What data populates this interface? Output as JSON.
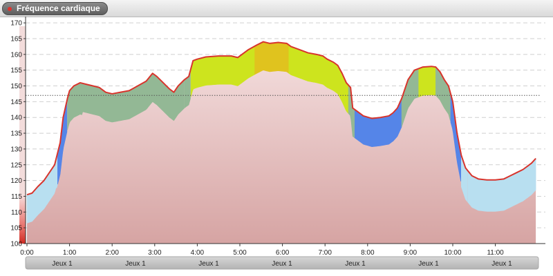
{
  "title": "Fréquence cardiaque",
  "colors": {
    "line": "#d8342c",
    "mean_line": "#555555",
    "baseline_fill": "#eac9c8",
    "zone_light_blue": "#b8dff0",
    "zone_blue": "#5585e8",
    "zone_green": "#93b895",
    "zone_yellow_green": "#cde41e",
    "zone_gold": "#e0c31e",
    "bar_red_top": "#f4d0ce",
    "bar_red_bottom": "#d7312a"
  },
  "chart_data": {
    "type": "area",
    "title": "Fréquence cardiaque",
    "xlabel": "",
    "ylabel": "",
    "ylim": [
      100,
      172
    ],
    "y_ticks": [
      "100",
      "105",
      "110",
      "115",
      "120",
      "125",
      "130",
      "135",
      "140",
      "145",
      "150",
      "155",
      "160",
      "165",
      "170"
    ],
    "x_ticks": [
      "0:00",
      "1:00",
      "2:00",
      "3:00",
      "4:00",
      "5:00",
      "6:00",
      "7:00",
      "8:00",
      "9:00",
      "10:00",
      "11:00"
    ],
    "day_labels": [
      "Jeux 1",
      "Jeux 1",
      "Jeux 1",
      "Jeux 1",
      "Jeux 1",
      "Jeux 1",
      "Jeux 1"
    ],
    "grid": true,
    "reference_line": 147,
    "series": [
      {
        "values": [
          [
            0,
            115.5
          ],
          [
            0.12,
            116
          ],
          [
            0.25,
            118
          ],
          [
            0.4,
            120
          ],
          [
            0.55,
            123
          ],
          [
            0.65,
            125
          ],
          [
            0.78,
            132
          ],
          [
            0.85,
            140
          ],
          [
            0.95,
            146
          ],
          [
            1.0,
            148.5
          ],
          [
            1.1,
            150
          ],
          [
            1.25,
            151
          ],
          [
            1.4,
            150.5
          ],
          [
            1.55,
            150
          ],
          [
            1.7,
            149.5
          ],
          [
            1.85,
            148
          ],
          [
            2.0,
            147.5
          ],
          [
            2.2,
            148
          ],
          [
            2.4,
            148.5
          ],
          [
            2.6,
            150
          ],
          [
            2.8,
            151.5
          ],
          [
            2.95,
            154
          ],
          [
            3.05,
            153
          ],
          [
            3.2,
            151
          ],
          [
            3.35,
            149
          ],
          [
            3.45,
            148
          ],
          [
            3.55,
            150
          ],
          [
            3.7,
            152
          ],
          [
            3.8,
            153
          ],
          [
            3.9,
            158
          ],
          [
            4.0,
            158.5
          ],
          [
            4.2,
            159.2
          ],
          [
            4.5,
            159.5
          ],
          [
            4.8,
            159.5
          ],
          [
            4.95,
            159
          ],
          [
            5.05,
            160
          ],
          [
            5.2,
            161.5
          ],
          [
            5.4,
            163
          ],
          [
            5.55,
            164
          ],
          [
            5.7,
            163.5
          ],
          [
            5.9,
            163.8
          ],
          [
            6.1,
            163.5
          ],
          [
            6.2,
            162.5
          ],
          [
            6.4,
            161.5
          ],
          [
            6.6,
            160.5
          ],
          [
            6.8,
            160
          ],
          [
            6.95,
            159.5
          ],
          [
            7.05,
            158.5
          ],
          [
            7.2,
            157.5
          ],
          [
            7.3,
            156.5
          ],
          [
            7.4,
            154
          ],
          [
            7.5,
            151
          ],
          [
            7.6,
            149.5
          ],
          [
            7.65,
            143
          ],
          [
            7.75,
            142
          ],
          [
            7.9,
            140.5
          ],
          [
            8.1,
            139.7
          ],
          [
            8.3,
            140
          ],
          [
            8.5,
            140.5
          ],
          [
            8.6,
            141.5
          ],
          [
            8.7,
            143
          ],
          [
            8.8,
            146
          ],
          [
            8.95,
            152
          ],
          [
            9.1,
            155
          ],
          [
            9.3,
            156
          ],
          [
            9.5,
            156.2
          ],
          [
            9.6,
            156
          ],
          [
            9.7,
            154.5
          ],
          [
            9.8,
            152
          ],
          [
            9.9,
            150
          ],
          [
            10.0,
            145
          ],
          [
            10.1,
            135
          ],
          [
            10.2,
            128
          ],
          [
            10.3,
            124
          ],
          [
            10.45,
            121.5
          ],
          [
            10.6,
            120.5
          ],
          [
            10.8,
            120.2
          ],
          [
            11.0,
            120.2
          ],
          [
            11.2,
            120.5
          ],
          [
            11.35,
            121.5
          ],
          [
            11.5,
            122.5
          ],
          [
            11.65,
            123.5
          ],
          [
            11.75,
            124.5
          ],
          [
            11.85,
            125.5
          ],
          [
            11.95,
            127
          ]
        ]
      }
    ]
  }
}
